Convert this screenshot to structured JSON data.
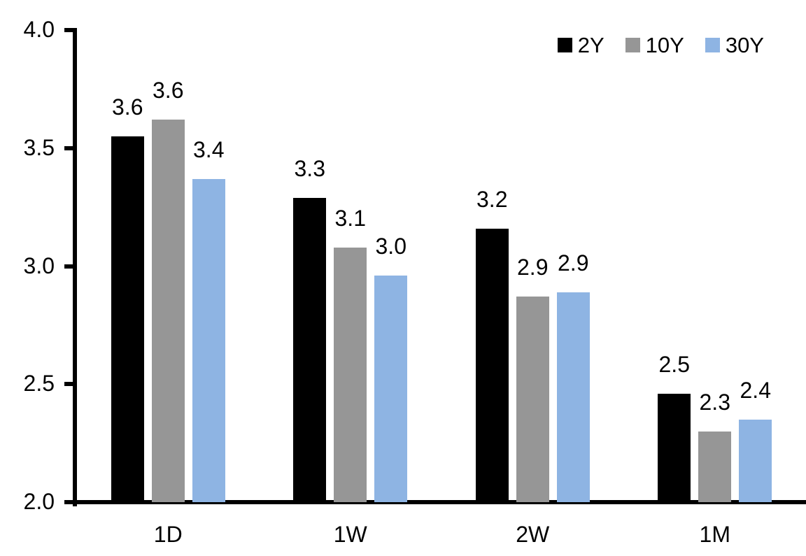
{
  "chart_data": {
    "type": "bar",
    "title": "",
    "categories": [
      "1D",
      "1W",
      "2W",
      "1M"
    ],
    "series": [
      {
        "name": "2Y",
        "color": "#000000",
        "values": [
          3.55,
          3.29,
          3.16,
          2.46
        ],
        "labels": [
          "3.6",
          "3.3",
          "3.2",
          "2.5"
        ]
      },
      {
        "name": "10Y",
        "color": "#969696",
        "values": [
          3.62,
          3.08,
          2.87,
          2.3
        ],
        "labels": [
          "3.6",
          "3.1",
          "2.9",
          "2.3"
        ]
      },
      {
        "name": "30Y",
        "color": "#8EB4E3",
        "values": [
          3.37,
          2.96,
          2.89,
          2.35
        ],
        "labels": [
          "3.4",
          "3.0",
          "2.9",
          "2.4"
        ]
      }
    ],
    "y_axis": {
      "min": 2.0,
      "max": 4.0,
      "tick_labels": [
        "4.0",
        "3.5",
        "3.0",
        "2.5",
        "2.0"
      ]
    },
    "legend": {
      "position": "top-right",
      "entries": [
        "2Y",
        "10Y",
        "30Y"
      ]
    },
    "grid": "off",
    "axis_color": "#000000",
    "background": "#FFFFFF"
  }
}
